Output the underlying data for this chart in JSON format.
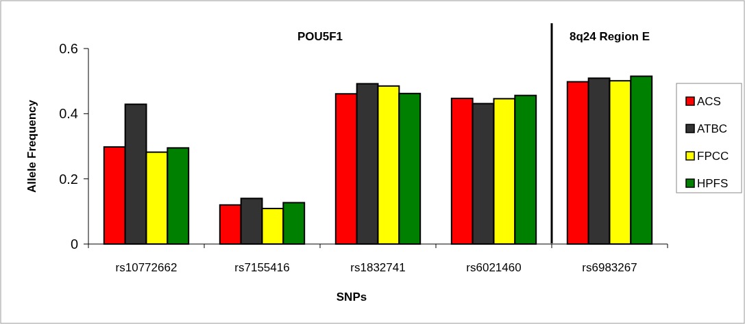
{
  "chart_data": {
    "type": "bar",
    "xlabel": "SNPs",
    "ylabel": "Allele Frequency",
    "categories": [
      "rs10772662",
      "rs7155416",
      "rs1832741",
      "rs6021460",
      "rs6983267"
    ],
    "series": [
      {
        "name": "ACS",
        "color": "#ff0000",
        "values": [
          0.298,
          0.12,
          0.461,
          0.447,
          0.498
        ]
      },
      {
        "name": "ATBC",
        "color": "#333333",
        "values": [
          0.429,
          0.14,
          0.492,
          0.431,
          0.509
        ]
      },
      {
        "name": "FPCC",
        "color": "#ffff00",
        "values": [
          0.282,
          0.109,
          0.485,
          0.446,
          0.501
        ]
      },
      {
        "name": "HPFS",
        "color": "#008000",
        "values": [
          0.295,
          0.127,
          0.462,
          0.456,
          0.515
        ]
      }
    ],
    "ylim": [
      0,
      0.6
    ],
    "yticks": [
      0,
      0.2,
      0.4,
      0.6
    ],
    "grid": false,
    "legend": "right",
    "annotations": [
      "POU5F1",
      "8q24 Region E"
    ]
  }
}
